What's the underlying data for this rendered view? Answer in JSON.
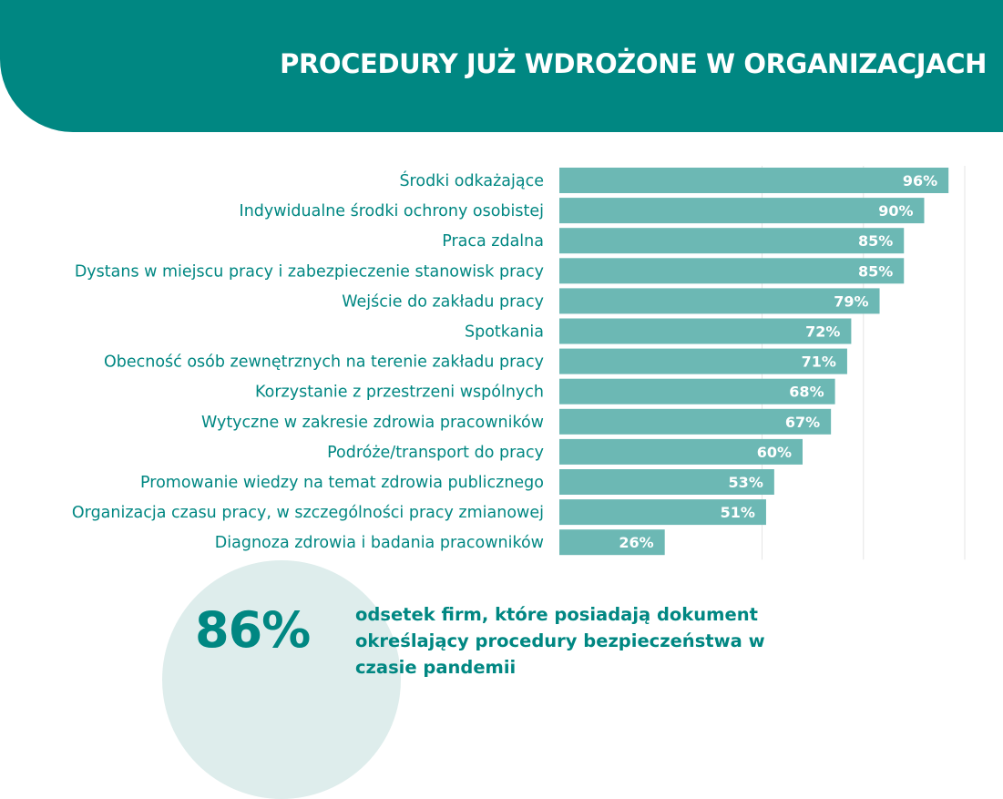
{
  "header": {
    "title": "PROCEDURY JUŻ WDROŻONE W ORGANIZACJACH"
  },
  "colors": {
    "banner": "#008782",
    "bar": "#6cb8b4",
    "label_text": "#008782",
    "circle": "#deedec",
    "grid": "#e5e5e5"
  },
  "chart_data": {
    "type": "bar",
    "orientation": "horizontal",
    "categories": [
      "Środki odkażające",
      "Indywidualne środki ochrony osobistej",
      "Praca zdalna",
      "Dystans w miejscu pracy i zabezpieczenie stanowisk pracy",
      "Wejście do zakładu pracy",
      "Spotkania",
      "Obecność osób zewnętrznych na terenie zakładu pracy",
      "Korzystanie z przestrzeni wspólnych",
      "Wytyczne w zakresie zdrowia pracowników",
      "Podróże/transport do pracy",
      "Promowanie wiedzy na temat zdrowia publicznego",
      "Organizacja czasu pracy, w szczególności pracy zmianowej",
      "Diagnoza zdrowia i badania pracowników"
    ],
    "values": [
      96,
      90,
      85,
      85,
      79,
      72,
      71,
      68,
      67,
      60,
      53,
      51,
      26
    ],
    "value_labels": [
      "96%",
      "90%",
      "85%",
      "85%",
      "79%",
      "72%",
      "71%",
      "68%",
      "67%",
      "60%",
      "53%",
      "51%",
      "26%"
    ],
    "xlim": [
      0,
      100
    ],
    "grid": true,
    "title": "",
    "xlabel": "",
    "ylabel": ""
  },
  "summary": {
    "big_value": "86%",
    "text_lines": [
      "odsetek firm, które posiadają dokument",
      "określający procedury bezpieczeństwa w",
      "czasie pandemii"
    ]
  }
}
